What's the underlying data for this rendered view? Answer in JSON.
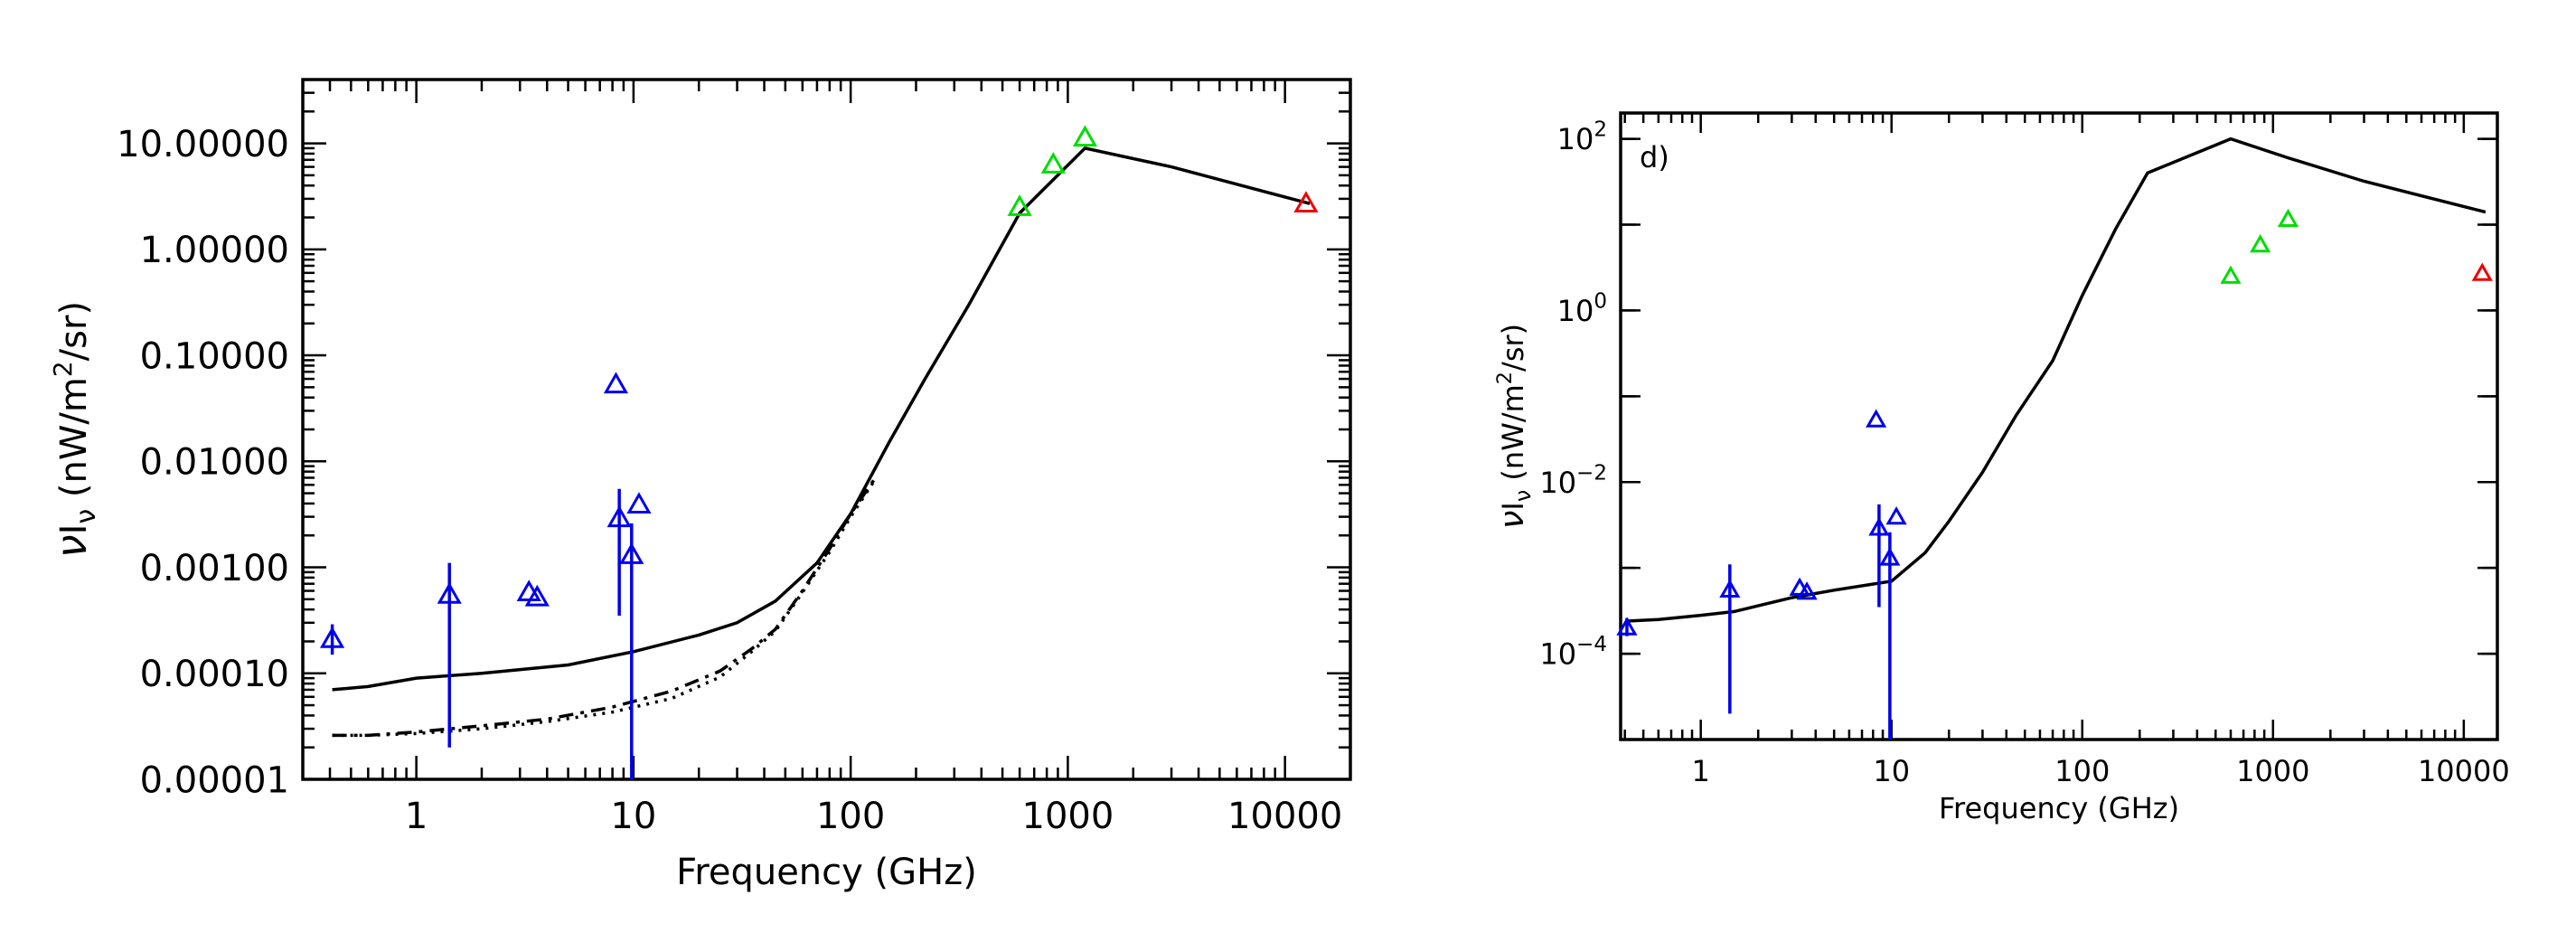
{
  "chart_data": [
    {
      "type": "line",
      "panel_label": "",
      "xlabel": "Frequency (GHz)",
      "ylabel_parts": {
        "nu": "ν",
        "I": "I",
        "sub": "ν",
        "units": " (nW/m",
        "sup": "2",
        "end": "/sr)"
      },
      "xscale": "log",
      "yscale": "log",
      "xlim": [
        0.3,
        20000
      ],
      "ylim": [
        1e-05,
        40
      ],
      "x_ticks": [
        {
          "v": 1,
          "label": "1"
        },
        {
          "v": 10,
          "label": "10"
        },
        {
          "v": 100,
          "label": "100"
        },
        {
          "v": 1000,
          "label": "1000"
        },
        {
          "v": 10000,
          "label": "10000"
        }
      ],
      "y_ticks": [
        {
          "v": 1e-05,
          "label": "0.00001"
        },
        {
          "v": 0.0001,
          "label": "0.00010"
        },
        {
          "v": 0.001,
          "label": "0.00100"
        },
        {
          "v": 0.01,
          "label": "0.01000"
        },
        {
          "v": 0.1,
          "label": "0.10000"
        },
        {
          "v": 1,
          "label": "1.00000"
        },
        {
          "v": 10,
          "label": "10.00000"
        }
      ],
      "series": [
        {
          "style": "solid",
          "color": "#000000",
          "x": [
            0.41,
            0.6,
            1,
            2,
            5,
            10,
            20,
            30,
            45,
            70,
            100,
            150,
            220,
            350,
            600,
            1200,
            3000,
            13000
          ],
          "y": [
            7e-05,
            7.5e-05,
            9e-05,
            0.0001,
            0.00012,
            0.00016,
            0.00023,
            0.0003,
            0.00048,
            0.0011,
            0.0032,
            0.015,
            0.06,
            0.3,
            2.2,
            9.0,
            6.0,
            2.7
          ]
        },
        {
          "style": "dashed",
          "color": "#000000",
          "x": [
            0.41,
            0.6,
            1,
            2,
            4,
            8,
            15,
            25,
            35,
            45,
            60,
            80,
            100,
            130
          ],
          "y": [
            2.6e-05,
            2.6e-05,
            2.8e-05,
            3.2e-05,
            3.7e-05,
            4.8e-05,
            6.8e-05,
            0.000105,
            0.00017,
            0.00026,
            0.0006,
            0.0015,
            0.0032,
            0.007
          ]
        },
        {
          "style": "dotted",
          "color": "#000000",
          "x": [
            0.41,
            0.6,
            1,
            2,
            4,
            8,
            15,
            25,
            35,
            45,
            60,
            80,
            100,
            130
          ],
          "y": [
            2.6e-05,
            2.6e-05,
            2.7e-05,
            3e-05,
            3.5e-05,
            4.3e-05,
            5.8e-05,
            9.2e-05,
            0.00016,
            0.00025,
            0.00058,
            0.0014,
            0.003,
            0.0068
          ]
        }
      ],
      "points": [
        {
          "x": 0.41,
          "y": 0.00021,
          "color": "#0000ee",
          "err": [
            0.00015,
            0.00029
          ]
        },
        {
          "x": 1.42,
          "y": 0.00055,
          "color": "#0000ee",
          "err": [
            2e-05,
            0.0011
          ]
        },
        {
          "x": 3.3,
          "y": 0.00058,
          "color": "#0000ee"
        },
        {
          "x": 3.6,
          "y": 0.00052,
          "color": "#0000ee"
        },
        {
          "x": 8.3,
          "y": 0.053,
          "color": "#0000ee"
        },
        {
          "x": 8.6,
          "y": 0.0029,
          "color": "#0000ee",
          "err": [
            0.00035,
            0.0055
          ]
        },
        {
          "x": 9.8,
          "y": 0.0013,
          "color": "#0000ee",
          "err": [
            1e-05,
            0.0026
          ]
        },
        {
          "x": 10.6,
          "y": 0.0039,
          "color": "#0000ee"
        },
        {
          "x": 600,
          "y": 2.5,
          "color": "#00dd00"
        },
        {
          "x": 857,
          "y": 6.3,
          "color": "#00dd00"
        },
        {
          "x": 1200,
          "y": 11.3,
          "color": "#00dd00"
        },
        {
          "x": 12500,
          "y": 2.7,
          "color": "#ee0000"
        }
      ]
    },
    {
      "type": "line",
      "panel_label": "d)",
      "xlabel": "Frequency (GHz)",
      "ylabel_parts": {
        "nu": "ν",
        "I": "I",
        "sub": "ν",
        "units": " (nW/m",
        "sup": "2",
        "end": "/sr)"
      },
      "xscale": "log",
      "yscale": "log",
      "xlim": [
        0.38,
        15000
      ],
      "ylim": [
        1e-05,
        200
      ],
      "x_ticks": [
        {
          "v": 1,
          "label": "1"
        },
        {
          "v": 10,
          "label": "10"
        },
        {
          "v": 100,
          "label": "100"
        },
        {
          "v": 1000,
          "label": "1000"
        },
        {
          "v": 10000,
          "label": "10000"
        }
      ],
      "y_ticks": [
        {
          "v": 0.0001,
          "base": "10",
          "exp": "−4"
        },
        {
          "v": 0.01,
          "base": "10",
          "exp": "−2"
        },
        {
          "v": 1,
          "base": "10",
          "exp": "0"
        },
        {
          "v": 100,
          "base": "10",
          "exp": "2"
        }
      ],
      "series": [
        {
          "style": "solid",
          "color": "#000000",
          "x": [
            0.41,
            0.6,
            1,
            1.5,
            3,
            5,
            10,
            15,
            20,
            30,
            45,
            70,
            100,
            150,
            220,
            600,
            1200,
            3000,
            13000
          ],
          "y": [
            0.00024,
            0.00025,
            0.00028,
            0.00031,
            0.00045,
            0.00055,
            0.0007,
            0.0015,
            0.0035,
            0.013,
            0.06,
            0.26,
            1.5,
            9.0,
            40,
            100,
            60,
            32,
            14
          ]
        }
      ],
      "points": [
        {
          "x": 0.41,
          "y": 0.0002,
          "color": "#0000ee",
          "err": [
            0.00016,
            0.00026
          ]
        },
        {
          "x": 1.42,
          "y": 0.00055,
          "color": "#0000ee",
          "err": [
            2e-05,
            0.0011
          ]
        },
        {
          "x": 3.3,
          "y": 0.00058,
          "color": "#0000ee"
        },
        {
          "x": 3.6,
          "y": 0.00052,
          "color": "#0000ee"
        },
        {
          "x": 8.3,
          "y": 0.053,
          "color": "#0000ee"
        },
        {
          "x": 8.6,
          "y": 0.0029,
          "color": "#0000ee",
          "err": [
            0.00035,
            0.0055
          ]
        },
        {
          "x": 9.8,
          "y": 0.0013,
          "color": "#0000ee",
          "err": [
            1e-05,
            0.0026
          ]
        },
        {
          "x": 10.6,
          "y": 0.0039,
          "color": "#0000ee"
        },
        {
          "x": 600,
          "y": 2.5,
          "color": "#00dd00"
        },
        {
          "x": 857,
          "y": 5.8,
          "color": "#00dd00"
        },
        {
          "x": 1200,
          "y": 11.5,
          "color": "#00dd00"
        },
        {
          "x": 12500,
          "y": 2.7,
          "color": "#ee0000"
        }
      ]
    }
  ]
}
